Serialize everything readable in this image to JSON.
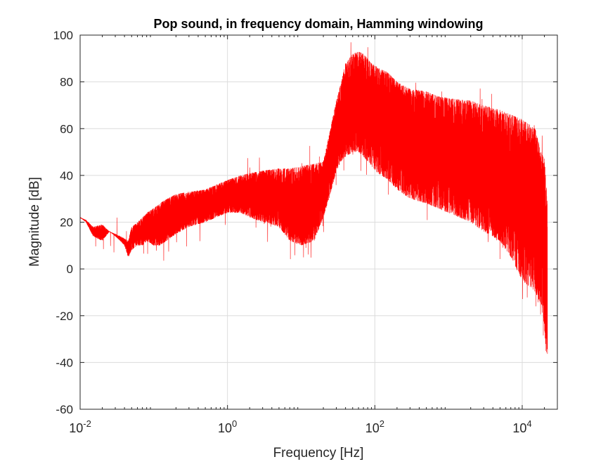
{
  "chart_data": {
    "type": "line",
    "title": "Pop sound, in frequency domain, Hamming windowing",
    "xlabel": "Frequency [Hz]",
    "ylabel": "Magnitude [dB]",
    "xscale": "log",
    "xlim": [
      0.01,
      30000
    ],
    "ylim": [
      -60,
      100
    ],
    "grid": true,
    "line_color": "#ff0000",
    "xticks": [
      {
        "value": 0.01,
        "base": "10",
        "exp": "-2"
      },
      {
        "value": 1,
        "base": "10",
        "exp": "0"
      },
      {
        "value": 100,
        "base": "10",
        "exp": "2"
      },
      {
        "value": 10000,
        "base": "10",
        "exp": "4"
      }
    ],
    "yticks": [
      -60,
      -40,
      -20,
      0,
      20,
      40,
      60,
      80,
      100
    ],
    "series": [
      {
        "x": [
          0.01,
          0.012,
          0.015,
          0.02,
          0.025,
          0.03,
          0.035,
          0.04,
          0.045,
          0.05,
          0.06,
          0.07,
          0.08,
          0.1,
          0.12,
          0.15,
          0.2,
          0.3,
          0.5,
          0.7,
          1,
          1.5,
          2,
          3,
          5,
          7,
          10,
          15,
          20,
          25,
          30,
          35,
          40,
          50,
          60,
          70,
          80,
          90,
          100,
          150,
          200,
          300,
          500,
          700,
          1000,
          2000,
          3000,
          5000,
          7000,
          10000,
          15000,
          18000,
          20000,
          21000,
          22000
        ],
        "upper": [
          22,
          21,
          18,
          19,
          16,
          15,
          14,
          13,
          12,
          18,
          20,
          22,
          24,
          26,
          28,
          30,
          32,
          33,
          34,
          36,
          38,
          40,
          41,
          42,
          43,
          43,
          44,
          45,
          46,
          60,
          72,
          80,
          88,
          92,
          93,
          92,
          90,
          88,
          87,
          84,
          80,
          77,
          76,
          74,
          73,
          72,
          70,
          68,
          66,
          64,
          60,
          50,
          47,
          40,
          26
        ],
        "lower": [
          22,
          20,
          14,
          12,
          16,
          14,
          12,
          10,
          5,
          8,
          10,
          10,
          12,
          10,
          10,
          12,
          15,
          18,
          20,
          22,
          24,
          24,
          22,
          20,
          18,
          12,
          10,
          12,
          22,
          32,
          42,
          46,
          48,
          50,
          50,
          48,
          46,
          44,
          42,
          38,
          34,
          30,
          28,
          26,
          24,
          20,
          16,
          12,
          5,
          -5,
          -10,
          -15,
          -25,
          -35,
          -40
        ]
      }
    ]
  }
}
